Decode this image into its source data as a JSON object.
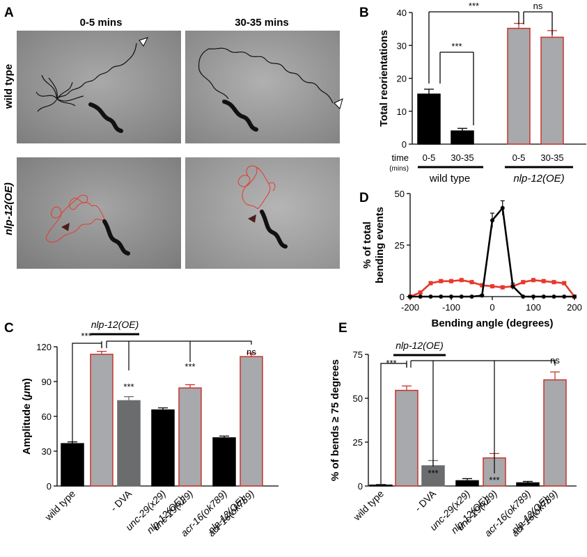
{
  "panel_letters": {
    "a": "A",
    "b": "B",
    "c": "C",
    "d": "D",
    "e": "E"
  },
  "panel_a": {
    "col_labels": [
      "0-5 mins",
      "30-35 mins"
    ],
    "row_labels": [
      "wild type",
      "nlp-12(OE)"
    ]
  },
  "chart_data": [
    {
      "panel": "B",
      "type": "bar",
      "ylabel": "Total reorientations",
      "ylim": [
        0,
        40
      ],
      "yticks": [
        0,
        10,
        20,
        30,
        40
      ],
      "time_row_label": "time",
      "time_unit_label": "(mins)",
      "groups": [
        {
          "label": "wild type",
          "bars": [
            {
              "time": "0-5",
              "value": 15.2,
              "err": 1.5
            },
            {
              "time": "30-35",
              "value": 4.0,
              "err": 0.8
            }
          ]
        },
        {
          "label": "nlp-12(OE)",
          "bars": [
            {
              "time": "0-5",
              "value": 35.2,
              "err": 1.5
            },
            {
              "time": "30-35",
              "value": 32.5,
              "err": 2.0
            }
          ]
        }
      ],
      "significance": [
        {
          "between": [
            "wild type 0-5",
            "wild type 30-35"
          ],
          "label": "***"
        },
        {
          "between": [
            "wild type 0-5",
            "nlp-12(OE) 0-5"
          ],
          "label": "***"
        },
        {
          "between": [
            "nlp-12(OE) 0-5",
            "nlp-12(OE) 30-35"
          ],
          "label": "ns"
        }
      ]
    },
    {
      "panel": "D",
      "type": "line",
      "xlabel": "Bending angle (degrees)",
      "ylabel_lines": [
        "% of total",
        "bending events"
      ],
      "xlim": [
        -200,
        200
      ],
      "ylim": [
        0,
        50
      ],
      "xticks": [
        -200,
        -100,
        0,
        100,
        200
      ],
      "yticks": [
        0,
        25,
        50
      ],
      "series": [
        {
          "color": "#000000",
          "x": [
            -200,
            -175,
            -150,
            -125,
            -100,
            -75,
            -50,
            -25,
            0,
            25,
            50,
            75,
            100,
            125,
            150,
            175,
            200
          ],
          "y": [
            0,
            0,
            0,
            0,
            0,
            0,
            0,
            0.5,
            37,
            43,
            5,
            0,
            0,
            0,
            0,
            0,
            0
          ],
          "err": [
            0,
            0,
            0,
            0,
            0,
            0,
            0,
            0.5,
            3.5,
            3.5,
            1.5,
            0,
            0,
            0,
            0,
            0,
            0
          ]
        },
        {
          "color": "#e8382b",
          "x": [
            -200,
            -175,
            -150,
            -125,
            -100,
            -75,
            -50,
            -25,
            0,
            25,
            50,
            75,
            100,
            125,
            150,
            175,
            200
          ],
          "y": [
            0,
            2,
            6.5,
            7.5,
            7.5,
            8,
            7,
            5.5,
            5,
            4.5,
            5,
            7,
            8,
            7.5,
            7,
            6.5,
            0
          ],
          "err": [
            0,
            0.6,
            0.8,
            0.8,
            0.8,
            0.8,
            0.8,
            0.6,
            0.6,
            0.6,
            0.6,
            0.8,
            0.8,
            0.8,
            0.8,
            0.8,
            0
          ]
        }
      ]
    },
    {
      "panel": "C",
      "type": "bar",
      "ylabel_prefix": "Amplitude (",
      "ylabel_mu": "μ",
      "ylabel_suffix": "m)",
      "ylim": [
        0,
        120
      ],
      "yticks": [
        0,
        30,
        60,
        90,
        120
      ],
      "bracket_label": "nlp-12(OE)",
      "categories": [
        {
          "lines": [
            "wild type"
          ],
          "it": [
            false
          ]
        },
        {
          "lines": [
            ""
          ],
          "it": [
            false
          ]
        },
        {
          "lines": [
            "- DVA"
          ],
          "it": [
            false
          ]
        },
        {
          "lines": [
            "unc-29(x29)"
          ],
          "it": [
            true
          ]
        },
        {
          "lines": [
            "nlp-12(OE);",
            "unc-29(x29)"
          ],
          "it": [
            true,
            true
          ]
        },
        {
          "lines": [
            "acr-16(ok789)"
          ],
          "it": [
            true
          ]
        },
        {
          "lines": [
            "nlp-12(OE);",
            "acr-16(ok789)"
          ],
          "it": [
            true,
            true
          ]
        }
      ],
      "values": [
        36.5,
        113.5,
        73.5,
        65.5,
        84.5,
        41.5,
        111.5
      ],
      "errors": [
        1.5,
        2.5,
        3.5,
        1.8,
        2.8,
        1.5,
        3.0
      ],
      "fills": [
        "#000000",
        "#a7a9ac",
        "#6b6c6e",
        "#000000",
        "#a7a9ac",
        "#000000",
        "#a7a9ac"
      ],
      "strokes": [
        "#000000",
        "#c8332d",
        "#6b6c6e",
        "#000000",
        "#c8332d",
        "#000000",
        "#c8332d"
      ],
      "sig_labels": [
        "***",
        "***",
        "***",
        "ns"
      ]
    },
    {
      "panel": "E",
      "type": "bar",
      "ylabel": "% of bends ≥ 75 degrees",
      "ylim": [
        0,
        75
      ],
      "yticks": [
        0,
        25,
        50,
        75
      ],
      "bracket_label": "nlp-12(OE)",
      "categories": [
        {
          "lines": [
            "wild type"
          ],
          "it": [
            false
          ]
        },
        {
          "lines": [
            ""
          ],
          "it": [
            false
          ]
        },
        {
          "lines": [
            "- DVA"
          ],
          "it": [
            false
          ]
        },
        {
          "lines": [
            "unc-29(x29)"
          ],
          "it": [
            true
          ]
        },
        {
          "lines": [
            "nlp-12(OE);",
            "unc-29(x29)"
          ],
          "it": [
            true,
            true
          ]
        },
        {
          "lines": [
            "acr-16(ok789)"
          ],
          "it": [
            true
          ]
        },
        {
          "lines": [
            "nlp-12(OE);",
            "acr-16(ok789)"
          ],
          "it": [
            true,
            true
          ]
        }
      ],
      "values": [
        0.5,
        54.5,
        11.5,
        3.0,
        16.0,
        1.8,
        60.5
      ],
      "errors": [
        0.3,
        2.5,
        3.0,
        1.2,
        2.5,
        0.8,
        4.5
      ],
      "fills": [
        "#000000",
        "#a7a9ac",
        "#6b6c6e",
        "#000000",
        "#a7a9ac",
        "#000000",
        "#a7a9ac"
      ],
      "strokes": [
        "#000000",
        "#c8332d",
        "#6b6c6e",
        "#000000",
        "#c8332d",
        "#000000",
        "#c8332d"
      ],
      "sig_labels": [
        "***",
        "***",
        "***",
        "ns"
      ]
    }
  ]
}
